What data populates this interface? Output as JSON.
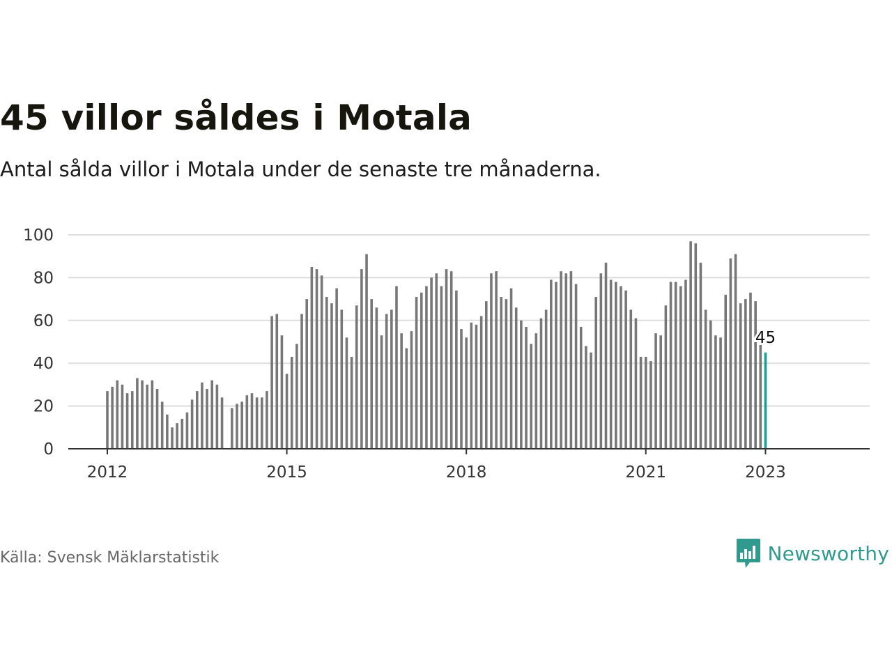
{
  "header": {
    "title": "45 villor såldes i Motala",
    "subtitle": "Antal sålda villor i Motala under de senaste tre månaderna."
  },
  "footer": {
    "source": "Källa: Svensk Mäklarstatistik",
    "brand": "Newsworthy",
    "brand_icon": "bar-chart-speech-icon",
    "brand_color": "#2f9a8d"
  },
  "colors": {
    "bar": "#777777",
    "highlight": "#1a9e94",
    "grid": "#dddddd",
    "axis": "#333333"
  },
  "chart_data": {
    "type": "bar",
    "x_start": "2012-01",
    "x_end": "2023-01",
    "x_ticks": [
      "2012",
      "2015",
      "2018",
      "2021",
      "2023"
    ],
    "y_ticks": [
      0,
      20,
      40,
      60,
      80,
      100
    ],
    "ylim": [
      0,
      100
    ],
    "grid": true,
    "annotation": {
      "text": "45",
      "month": "2023-01"
    },
    "series": [
      {
        "values": [
          27,
          29,
          32,
          30,
          26,
          27,
          33,
          32,
          30,
          32,
          28,
          22,
          16,
          10,
          12,
          14,
          17,
          23,
          27,
          31,
          28,
          32,
          30,
          24,
          null,
          19,
          21,
          22,
          25,
          26,
          24,
          24,
          27,
          62,
          63,
          53,
          35,
          43,
          49,
          63,
          70,
          85,
          84,
          81,
          71,
          68,
          75,
          65,
          52,
          43,
          67,
          84,
          91,
          70,
          66,
          53,
          63,
          65,
          76,
          54,
          47,
          55,
          71,
          73,
          76,
          80,
          82,
          76,
          84,
          83,
          74,
          56,
          52,
          59,
          58,
          62,
          69,
          82,
          83,
          71,
          70,
          75,
          66,
          60,
          57,
          49,
          54,
          61,
          65,
          79,
          78,
          83,
          82,
          83,
          77,
          57,
          48,
          45,
          71,
          82,
          87,
          79,
          78,
          76,
          74,
          65,
          61,
          43,
          43,
          41,
          54,
          53,
          67,
          78,
          78,
          76,
          79,
          97,
          96,
          87,
          65,
          60,
          53,
          52,
          72,
          89,
          91,
          68,
          70,
          73,
          69,
          50,
          45
        ]
      }
    ]
  }
}
